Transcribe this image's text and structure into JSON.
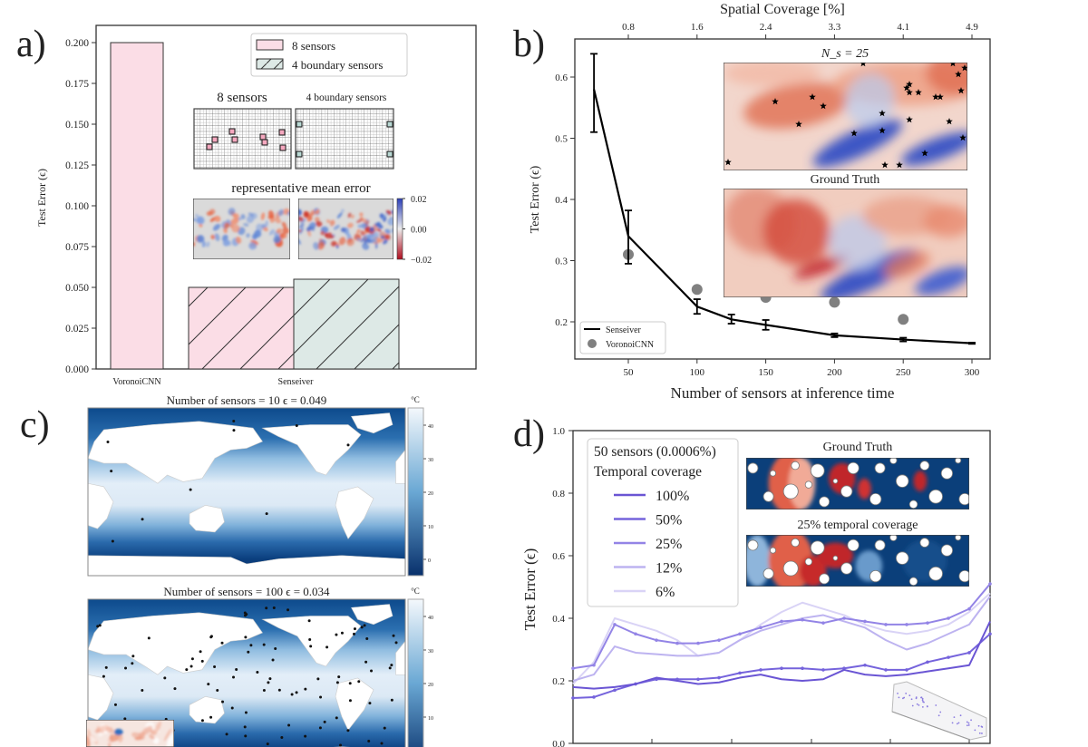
{
  "figure": {
    "panel_labels": [
      "a)",
      "b)",
      "c)",
      "d)"
    ]
  },
  "chart_data": [
    {
      "panel": "a",
      "type": "bar",
      "ylabel": "Test Error (ϵ)",
      "categories": [
        "VoronoiCNN",
        "Senseiver"
      ],
      "series": [
        {
          "name": "8 sensors",
          "values": [
            0.2,
            0.05
          ]
        },
        {
          "name": "4 boundary sensors",
          "values": [
            null,
            0.055
          ]
        }
      ],
      "ylim": [
        0,
        0.21
      ],
      "yticks": [
        "0.000",
        "0.025",
        "0.050",
        "0.075",
        "0.100",
        "0.125",
        "0.150",
        "0.175",
        "0.200"
      ],
      "legend_position": "top-right",
      "colors": {
        "8 sensors": "#fbdde6",
        "4 boundary sensors": "#dde9e6"
      },
      "inset": {
        "sensor_titles": [
          "8 sensors",
          "4 boundary sensors"
        ],
        "error_title": "representative mean error",
        "colorbar_ticks": [
          "0.02",
          "0.00",
          "−0.02"
        ]
      }
    },
    {
      "panel": "b",
      "type": "line",
      "xlabel": "Number of sensors at inference time",
      "ylabel": "Test Error (ϵ)",
      "top_xlabel": "Spatial Coverage [%]",
      "xticks": [
        "50",
        "100",
        "150",
        "200",
        "250",
        "300"
      ],
      "top_xticks": [
        "0.8",
        "1.6",
        "2.4",
        "3.3",
        "4.1",
        "4.9"
      ],
      "yticks": [
        "0.2",
        "0.3",
        "0.4",
        "0.5",
        "0.6"
      ],
      "xlim": [
        12,
        312
      ],
      "ylim": [
        0.14,
        0.66
      ],
      "legend_position": "bottom-left",
      "series": [
        {
          "name": "Senseiver",
          "type": "line-errorbar",
          "color": "#000000",
          "x": [
            25,
            50,
            100,
            125,
            150,
            200,
            250,
            300
          ],
          "y": [
            0.58,
            0.34,
            0.225,
            0.204,
            0.195,
            0.178,
            0.171,
            0.165
          ],
          "err_low": [
            0.51,
            0.295,
            0.213,
            0.197,
            0.187,
            0.175,
            0.168,
            0.164
          ],
          "err_high": [
            0.638,
            0.382,
            0.237,
            0.212,
            0.203,
            0.181,
            0.174,
            0.166
          ]
        },
        {
          "name": "VoronoiCNN",
          "type": "scatter",
          "color": "#808080",
          "x": [
            50,
            100,
            150,
            200,
            250
          ],
          "y": [
            0.31,
            0.253,
            0.24,
            0.232,
            0.204
          ]
        }
      ],
      "insets": {
        "top_title": "N_s = 25",
        "top_title_main": "N",
        "top_title_sub": "s",
        "top_title_rest": " = 25",
        "bottom_title": "Ground Truth"
      }
    },
    {
      "panel": "d",
      "type": "line",
      "ylabel": "Test Error (ϵ)",
      "yticks": [
        "0.0",
        "0.2",
        "0.4",
        "0.6",
        "0.8",
        "1.0"
      ],
      "ylim": [
        0,
        1
      ],
      "legend_title": [
        "50 sensors (0.0006%)",
        "Temporal coverage"
      ],
      "legend_position": "top-left",
      "x": [
        0,
        5,
        10,
        15,
        20,
        25,
        30,
        35,
        40,
        45,
        50,
        55,
        60,
        65,
        70,
        75,
        80,
        85,
        90,
        95,
        100
      ],
      "series": [
        {
          "name": "100%",
          "color": "#6a55d4",
          "markers": false,
          "y": [
            0.18,
            0.175,
            0.18,
            0.19,
            0.21,
            0.2,
            0.19,
            0.195,
            0.21,
            0.22,
            0.205,
            0.2,
            0.205,
            0.235,
            0.22,
            0.215,
            0.22,
            0.23,
            0.24,
            0.25,
            0.39
          ]
        },
        {
          "name": "50%",
          "color": "#7563dc",
          "markers": true,
          "y": [
            0.145,
            0.148,
            0.17,
            0.19,
            0.205,
            0.205,
            0.205,
            0.21,
            0.225,
            0.235,
            0.24,
            0.24,
            0.235,
            0.24,
            0.25,
            0.235,
            0.235,
            0.26,
            0.275,
            0.29,
            0.35
          ]
        },
        {
          "name": "25%",
          "color": "#9384e6",
          "markers": true,
          "y": [
            0.24,
            0.25,
            0.38,
            0.35,
            0.33,
            0.32,
            0.32,
            0.33,
            0.35,
            0.37,
            0.39,
            0.395,
            0.385,
            0.4,
            0.39,
            0.38,
            0.38,
            0.385,
            0.4,
            0.43,
            0.51
          ]
        },
        {
          "name": "12%",
          "color": "#bdb3f0",
          "markers": false,
          "y": [
            0.2,
            0.22,
            0.31,
            0.29,
            0.285,
            0.28,
            0.28,
            0.29,
            0.33,
            0.36,
            0.38,
            0.4,
            0.41,
            0.39,
            0.37,
            0.33,
            0.3,
            0.32,
            0.35,
            0.38,
            0.47
          ]
        },
        {
          "name": "6%",
          "color": "#d9d3f6",
          "markers": false,
          "y": [
            0.19,
            0.26,
            0.4,
            0.38,
            0.36,
            0.33,
            0.28,
            0.29,
            0.33,
            0.38,
            0.42,
            0.45,
            0.43,
            0.41,
            0.38,
            0.36,
            0.35,
            0.36,
            0.38,
            0.42,
            0.48
          ]
        }
      ],
      "insets": {
        "top_title": "Ground Truth",
        "bottom_title": "25% temporal coverage"
      }
    }
  ],
  "panel_c": {
    "unit": "°C",
    "colorbar_ticks": [
      "40",
      "30",
      "20",
      "10",
      "0"
    ],
    "maps": [
      {
        "title": "Number of sensors = 10   ϵ = 0.049",
        "sensors": 10,
        "error": 0.049
      },
      {
        "title": "Number of sensors = 100   ϵ = 0.034",
        "sensors": 100,
        "error": 0.034
      }
    ]
  }
}
